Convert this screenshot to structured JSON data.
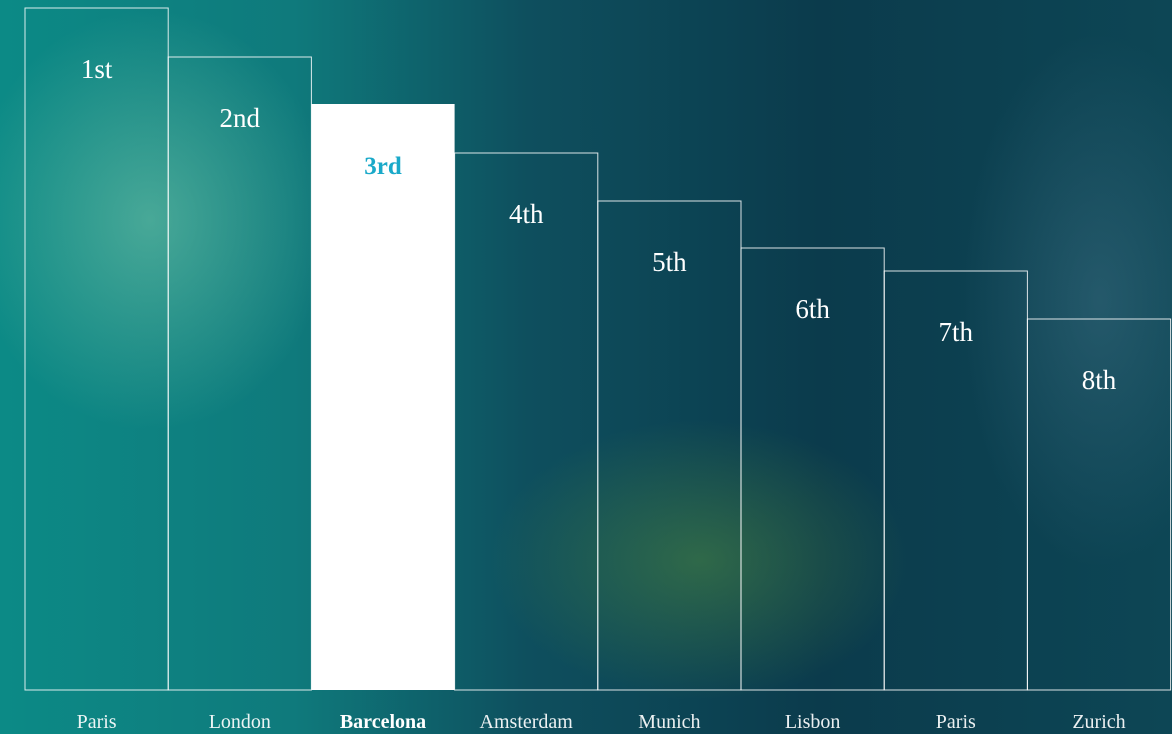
{
  "items": [
    {
      "rank": "1st",
      "city": "Paris",
      "highlighted": false
    },
    {
      "rank": "2nd",
      "city": "London",
      "highlighted": false
    },
    {
      "rank": "3rd",
      "city": "Barcelona",
      "highlighted": true
    },
    {
      "rank": "4th",
      "city": "Amsterdam",
      "highlighted": false
    },
    {
      "rank": "5th",
      "city": "Munich",
      "highlighted": false
    },
    {
      "rank": "6th",
      "city": "Lisbon",
      "highlighted": false
    },
    {
      "rank": "7th",
      "city": "Paris",
      "highlighted": false
    },
    {
      "rank": "8th",
      "city": "Zurich",
      "highlighted": false
    }
  ]
}
